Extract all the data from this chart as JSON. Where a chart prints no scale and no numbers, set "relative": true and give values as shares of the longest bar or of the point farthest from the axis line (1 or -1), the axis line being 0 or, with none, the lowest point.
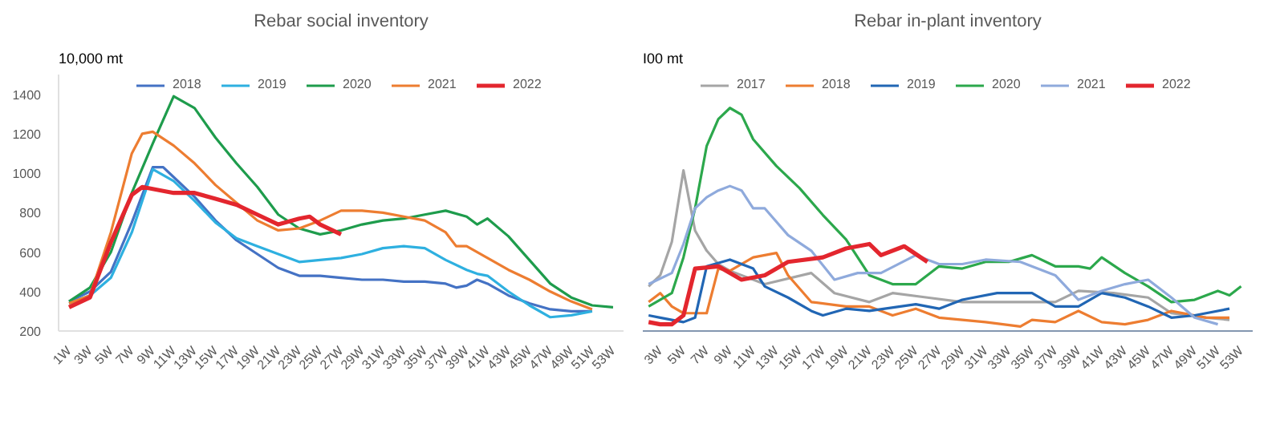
{
  "chart_data": [
    {
      "type": "line",
      "title": "Rebar social inventory",
      "ylabel": "10,000 mt",
      "xlim": [
        0,
        54
      ],
      "ylim": [
        200,
        1500
      ],
      "xticks": [
        {
          "value": 1,
          "label": "1W"
        },
        {
          "value": 3,
          "label": "3W"
        },
        {
          "value": 5,
          "label": "5W"
        },
        {
          "value": 7,
          "label": "7W"
        },
        {
          "value": 9,
          "label": "9W"
        },
        {
          "value": 11,
          "label": "11W"
        },
        {
          "value": 13,
          "label": "13W"
        },
        {
          "value": 15,
          "label": "15W"
        },
        {
          "value": 17,
          "label": "17W"
        },
        {
          "value": 19,
          "label": "19W"
        },
        {
          "value": 21,
          "label": "21W"
        },
        {
          "value": 23,
          "label": "23W"
        },
        {
          "value": 25,
          "label": "25W"
        },
        {
          "value": 27,
          "label": "27W"
        },
        {
          "value": 29,
          "label": "29W"
        },
        {
          "value": 31,
          "label": "31W"
        },
        {
          "value": 33,
          "label": "33W"
        },
        {
          "value": 35,
          "label": "35W"
        },
        {
          "value": 37,
          "label": "37W"
        },
        {
          "value": 39,
          "label": "39W"
        },
        {
          "value": 41,
          "label": "41W"
        },
        {
          "value": 43,
          "label": "43W"
        },
        {
          "value": 45,
          "label": "45W"
        },
        {
          "value": 47,
          "label": "47W"
        },
        {
          "value": 49,
          "label": "49W"
        },
        {
          "value": 51,
          "label": "51W"
        },
        {
          "value": 53,
          "label": "53W"
        }
      ],
      "yticks": [
        200,
        400,
        600,
        800,
        1000,
        1200,
        1400
      ],
      "grid": false,
      "legend": "top",
      "marker": "none",
      "line_style": "solid",
      "series": [
        {
          "name": "2018",
          "color": "#4472c4",
          "x": [
            1,
            3,
            5,
            7,
            9,
            10,
            11,
            13,
            15,
            17,
            19,
            21,
            23,
            25,
            27,
            29,
            31,
            33,
            35,
            37,
            38,
            39,
            40,
            41,
            43,
            45,
            47,
            49,
            51
          ],
          "values": [
            350,
            400,
            500,
            750,
            1030,
            1030,
            980,
            880,
            760,
            660,
            590,
            520,
            480,
            480,
            470,
            460,
            460,
            450,
            450,
            440,
            420,
            430,
            460,
            440,
            380,
            340,
            310,
            300,
            300
          ]
        },
        {
          "name": "2019",
          "color": "#2eb0e0",
          "x": [
            1,
            3,
            5,
            7,
            9,
            11,
            13,
            15,
            17,
            19,
            21,
            23,
            25,
            27,
            29,
            31,
            33,
            35,
            37,
            39,
            40,
            41,
            43,
            45,
            47,
            49,
            51
          ],
          "values": [
            340,
            380,
            470,
            700,
            1020,
            960,
            860,
            750,
            670,
            630,
            590,
            550,
            560,
            570,
            590,
            620,
            630,
            620,
            560,
            510,
            490,
            480,
            400,
            330,
            270,
            280,
            300
          ]
        },
        {
          "name": "2020",
          "color": "#1e9c4c",
          "x": [
            1,
            3,
            5,
            7,
            9,
            11,
            13,
            15,
            17,
            19,
            21,
            23,
            25,
            27,
            29,
            31,
            33,
            35,
            37,
            39,
            40,
            41,
            43,
            45,
            47,
            49,
            51,
            53
          ],
          "values": [
            350,
            420,
            600,
            900,
            1150,
            1390,
            1330,
            1180,
            1050,
            930,
            790,
            720,
            690,
            710,
            740,
            760,
            770,
            790,
            810,
            780,
            740,
            770,
            680,
            560,
            440,
            370,
            330,
            320
          ]
        },
        {
          "name": "2021",
          "color": "#ed7d31",
          "x": [
            1,
            3,
            5,
            7,
            8,
            9,
            11,
            13,
            15,
            17,
            19,
            21,
            23,
            25,
            27,
            29,
            31,
            33,
            35,
            37,
            38,
            39,
            41,
            43,
            45,
            47,
            49,
            51
          ],
          "values": [
            340,
            380,
            700,
            1100,
            1200,
            1210,
            1140,
            1050,
            940,
            850,
            760,
            710,
            720,
            760,
            810,
            810,
            800,
            780,
            760,
            700,
            630,
            630,
            570,
            510,
            460,
            400,
            350,
            310
          ]
        },
        {
          "name": "2022",
          "color": "#e3262e",
          "x": [
            1,
            3,
            5,
            7,
            8,
            9,
            11,
            13,
            15,
            17,
            19,
            21,
            23,
            24,
            25,
            27
          ],
          "values": [
            320,
            370,
            650,
            890,
            930,
            920,
            900,
            900,
            870,
            840,
            790,
            740,
            770,
            780,
            740,
            690
          ]
        }
      ]
    },
    {
      "type": "line",
      "title": "Rebar in-plant inventory",
      "ylabel": "I00 mt",
      "relative": true,
      "xlim": [
        1.5,
        54
      ],
      "xticks": [
        {
          "value": 3,
          "label": "3W"
        },
        {
          "value": 5,
          "label": "5W"
        },
        {
          "value": 7,
          "label": "7W"
        },
        {
          "value": 9,
          "label": "9W"
        },
        {
          "value": 11,
          "label": "11W"
        },
        {
          "value": 13,
          "label": "13W"
        },
        {
          "value": 15,
          "label": "15W"
        },
        {
          "value": 17,
          "label": "17W"
        },
        {
          "value": 19,
          "label": "19W"
        },
        {
          "value": 21,
          "label": "21W"
        },
        {
          "value": 23,
          "label": "23W"
        },
        {
          "value": 25,
          "label": "25W"
        },
        {
          "value": 27,
          "label": "27W"
        },
        {
          "value": 29,
          "label": "29W"
        },
        {
          "value": 31,
          "label": "31W"
        },
        {
          "value": 33,
          "label": "33W"
        },
        {
          "value": 35,
          "label": "35W"
        },
        {
          "value": 37,
          "label": "37W"
        },
        {
          "value": 39,
          "label": "39W"
        },
        {
          "value": 41,
          "label": "41W"
        },
        {
          "value": 43,
          "label": "43W"
        },
        {
          "value": 45,
          "label": "45W"
        },
        {
          "value": 47,
          "label": "47W"
        },
        {
          "value": 49,
          "label": "49W"
        },
        {
          "value": 51,
          "label": "51W"
        },
        {
          "value": 53,
          "label": "53W"
        }
      ],
      "grid": false,
      "legend": "top",
      "marker": "none",
      "line_style": "solid",
      "series": [
        {
          "name": "2017",
          "color": "#a5a5a5",
          "x": [
            2,
            3,
            4,
            5,
            6,
            7,
            8,
            9,
            12,
            16,
            18,
            21,
            23,
            26,
            29,
            32,
            35,
            37,
            39,
            42,
            45,
            47,
            50,
            52
          ],
          "values": [
            0.2,
            0.25,
            0.4,
            0.72,
            0.45,
            0.36,
            0.3,
            0.27,
            0.21,
            0.26,
            0.17,
            0.13,
            0.17,
            0.15,
            0.13,
            0.13,
            0.13,
            0.13,
            0.18,
            0.17,
            0.15,
            0.08,
            0.06,
            0.05
          ]
        },
        {
          "name": "2018",
          "color": "#ed7d31",
          "x": [
            2,
            3,
            4,
            5,
            6,
            7,
            8,
            9,
            11,
            13,
            14,
            16,
            19,
            21,
            23,
            25,
            27,
            31,
            34,
            35,
            37,
            39,
            41,
            43,
            45,
            47,
            50,
            52
          ],
          "values": [
            0.13,
            0.17,
            0.11,
            0.08,
            0.08,
            0.08,
            0.28,
            0.27,
            0.33,
            0.35,
            0.25,
            0.13,
            0.11,
            0.11,
            0.07,
            0.1,
            0.06,
            0.04,
            0.02,
            0.05,
            0.04,
            0.09,
            0.04,
            0.03,
            0.05,
            0.09,
            0.06,
            0.06
          ]
        },
        {
          "name": "2019",
          "color": "#2166b4",
          "x": [
            2,
            3,
            5,
            6,
            7,
            9,
            11,
            12,
            14,
            16,
            17,
            19,
            21,
            25,
            27,
            29,
            32,
            35,
            37,
            39,
            41,
            43,
            45,
            47,
            49,
            52
          ],
          "values": [
            0.07,
            0.06,
            0.04,
            0.06,
            0.29,
            0.32,
            0.28,
            0.2,
            0.15,
            0.09,
            0.07,
            0.1,
            0.09,
            0.12,
            0.1,
            0.14,
            0.17,
            0.17,
            0.11,
            0.11,
            0.17,
            0.15,
            0.11,
            0.06,
            0.07,
            0.1
          ]
        },
        {
          "name": "2020",
          "color": "#2ca84c",
          "x": [
            2,
            4,
            5,
            6,
            7,
            8,
            9,
            10,
            11,
            13,
            15,
            17,
            19,
            21,
            23,
            25,
            27,
            29,
            31,
            33,
            35,
            37,
            39,
            40,
            41,
            43,
            45,
            47,
            49,
            51,
            52,
            53
          ],
          "values": [
            0.11,
            0.17,
            0.33,
            0.55,
            0.83,
            0.95,
            1,
            0.97,
            0.86,
            0.74,
            0.64,
            0.52,
            0.41,
            0.25,
            0.21,
            0.21,
            0.29,
            0.28,
            0.31,
            0.31,
            0.34,
            0.29,
            0.29,
            0.28,
            0.33,
            0.26,
            0.2,
            0.13,
            0.14,
            0.18,
            0.16,
            0.2
          ]
        },
        {
          "name": "2021",
          "color": "#8faadc",
          "x": [
            2,
            4,
            5,
            6,
            7,
            8,
            9,
            10,
            11,
            12,
            14,
            16,
            18,
            20,
            22,
            25,
            27,
            29,
            31,
            34,
            37,
            39,
            41,
            43,
            45,
            47,
            49,
            51
          ],
          "values": [
            0.21,
            0.26,
            0.39,
            0.55,
            0.6,
            0.63,
            0.65,
            0.63,
            0.55,
            0.55,
            0.43,
            0.36,
            0.23,
            0.26,
            0.26,
            0.34,
            0.3,
            0.3,
            0.32,
            0.31,
            0.25,
            0.14,
            0.18,
            0.21,
            0.23,
            0.15,
            0.06,
            0.03
          ]
        },
        {
          "name": "2022",
          "color": "#e3262e",
          "x": [
            2,
            3,
            4,
            5,
            6,
            8,
            10,
            12,
            14,
            17,
            19,
            21,
            22,
            24,
            26
          ],
          "values": [
            0.04,
            0.03,
            0.03,
            0.07,
            0.28,
            0.29,
            0.23,
            0.25,
            0.31,
            0.33,
            0.37,
            0.39,
            0.34,
            0.38,
            0.31
          ]
        }
      ]
    }
  ]
}
